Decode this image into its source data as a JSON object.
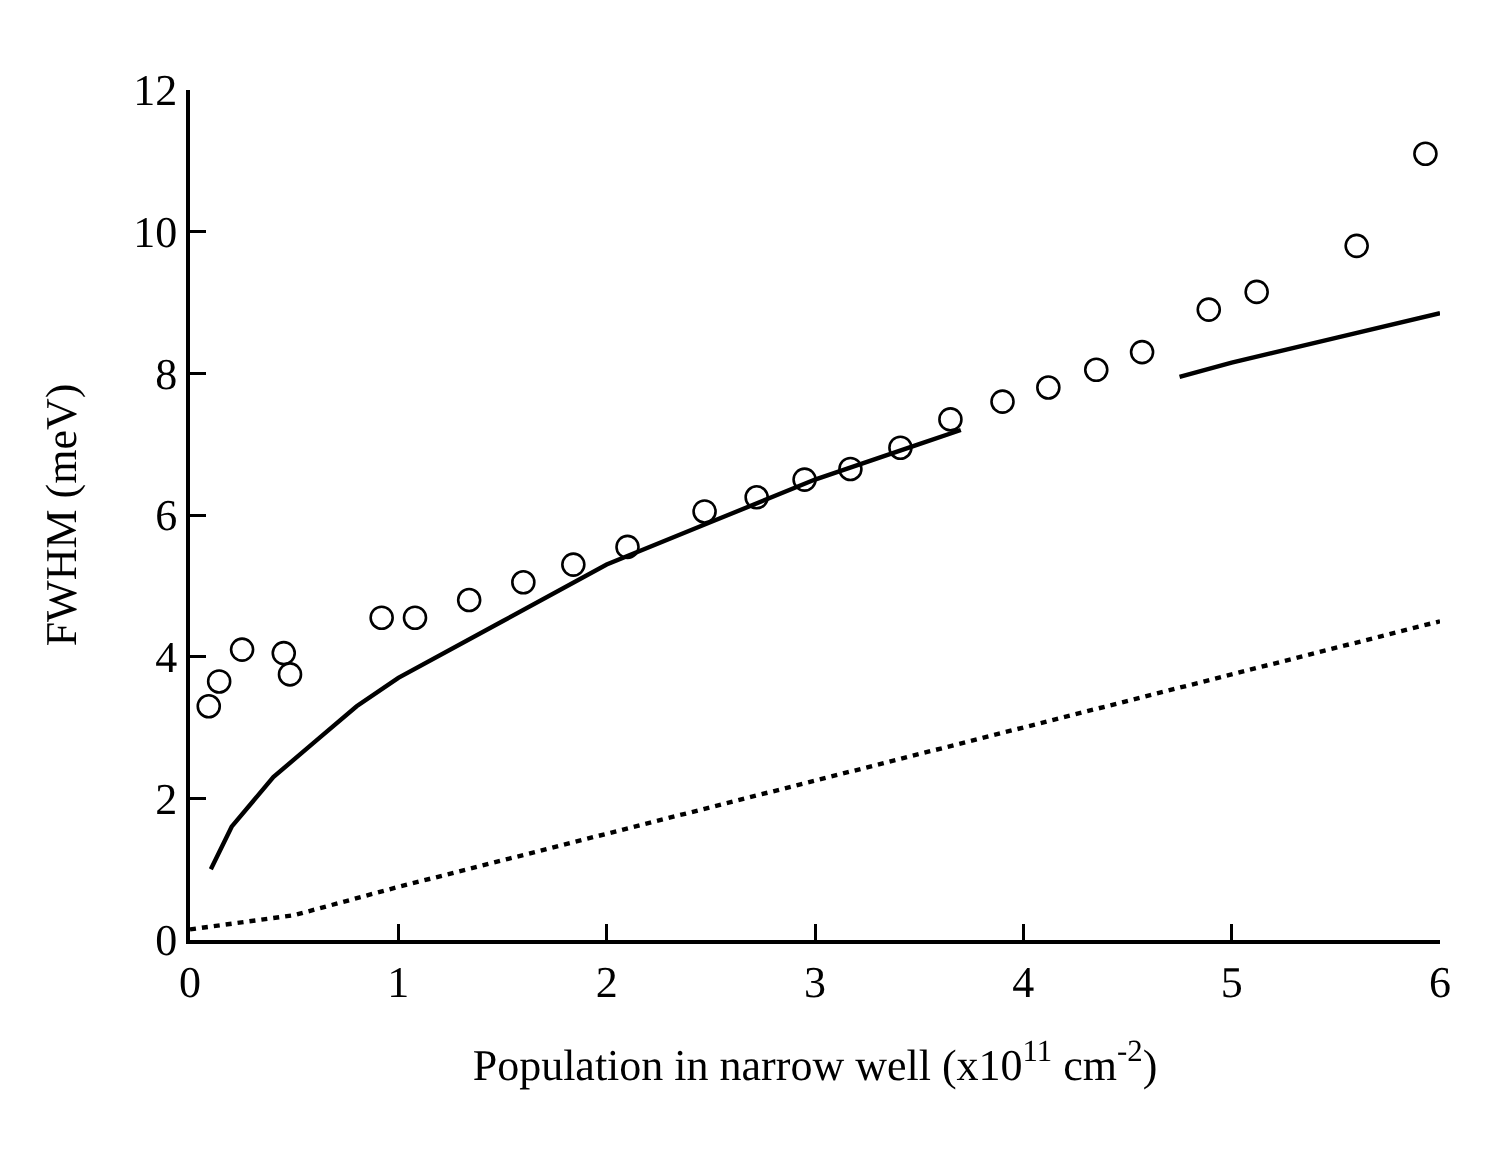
{
  "chart_data": {
    "type": "scatter",
    "xlabel": "Population in narrow well (x10$^{11}$ cm$^{-2}$)",
    "ylabel": "FWHM (meV)",
    "xlim": [
      0,
      6
    ],
    "xticks": [
      0,
      1,
      2,
      3,
      4,
      5,
      6
    ],
    "ylim": [
      0,
      12
    ],
    "yticks": [
      0,
      2,
      4,
      6,
      8,
      10,
      12
    ],
    "grid": false,
    "marker": "circle",
    "series": [
      {
        "color": "#000000",
        "x": [
          0.09,
          0.14,
          0.25,
          0.45,
          0.48,
          0.92,
          1.08,
          1.34,
          1.6,
          1.84,
          2.1,
          2.47,
          2.72,
          2.95,
          3.17,
          3.41,
          3.65,
          3.9,
          4.12,
          4.35,
          4.57,
          4.89,
          5.12,
          5.6,
          5.93
        ],
        "values": [
          3.3,
          3.65,
          4.1,
          4.05,
          3.75,
          4.55,
          4.55,
          4.8,
          5.05,
          5.3,
          5.55,
          6.05,
          6.25,
          6.5,
          6.65,
          6.95,
          7.35,
          7.6,
          7.8,
          8.05,
          8.3,
          8.9,
          9.15,
          9.8,
          11.1
        ]
      },
      {
        "type": "line",
        "color": "#000000",
        "line_style": "solid",
        "marker": "none",
        "x": [
          0.1,
          0.2,
          0.4,
          0.6,
          0.8,
          1.0,
          1.5,
          2.0,
          2.5,
          3.0,
          3.5,
          3.7
        ],
        "values": [
          1.0,
          1.6,
          2.3,
          2.8,
          3.3,
          3.7,
          4.5,
          5.3,
          5.9,
          6.5,
          7.0,
          7.2
        ]
      },
      {
        "type": "line",
        "color": "#000000",
        "line_style": "solid",
        "marker": "none",
        "x": [
          4.75,
          5.0,
          5.5,
          6.0
        ],
        "values": [
          7.95,
          8.15,
          8.5,
          8.85
        ]
      },
      {
        "type": "line",
        "color": "#000000",
        "line_style": "dotted",
        "marker": "none",
        "x": [
          0,
          0.5,
          1,
          2,
          3,
          4,
          5,
          6
        ],
        "values": [
          0.15,
          0.35,
          0.75,
          1.5,
          2.25,
          3.0,
          3.75,
          4.5
        ]
      }
    ]
  }
}
